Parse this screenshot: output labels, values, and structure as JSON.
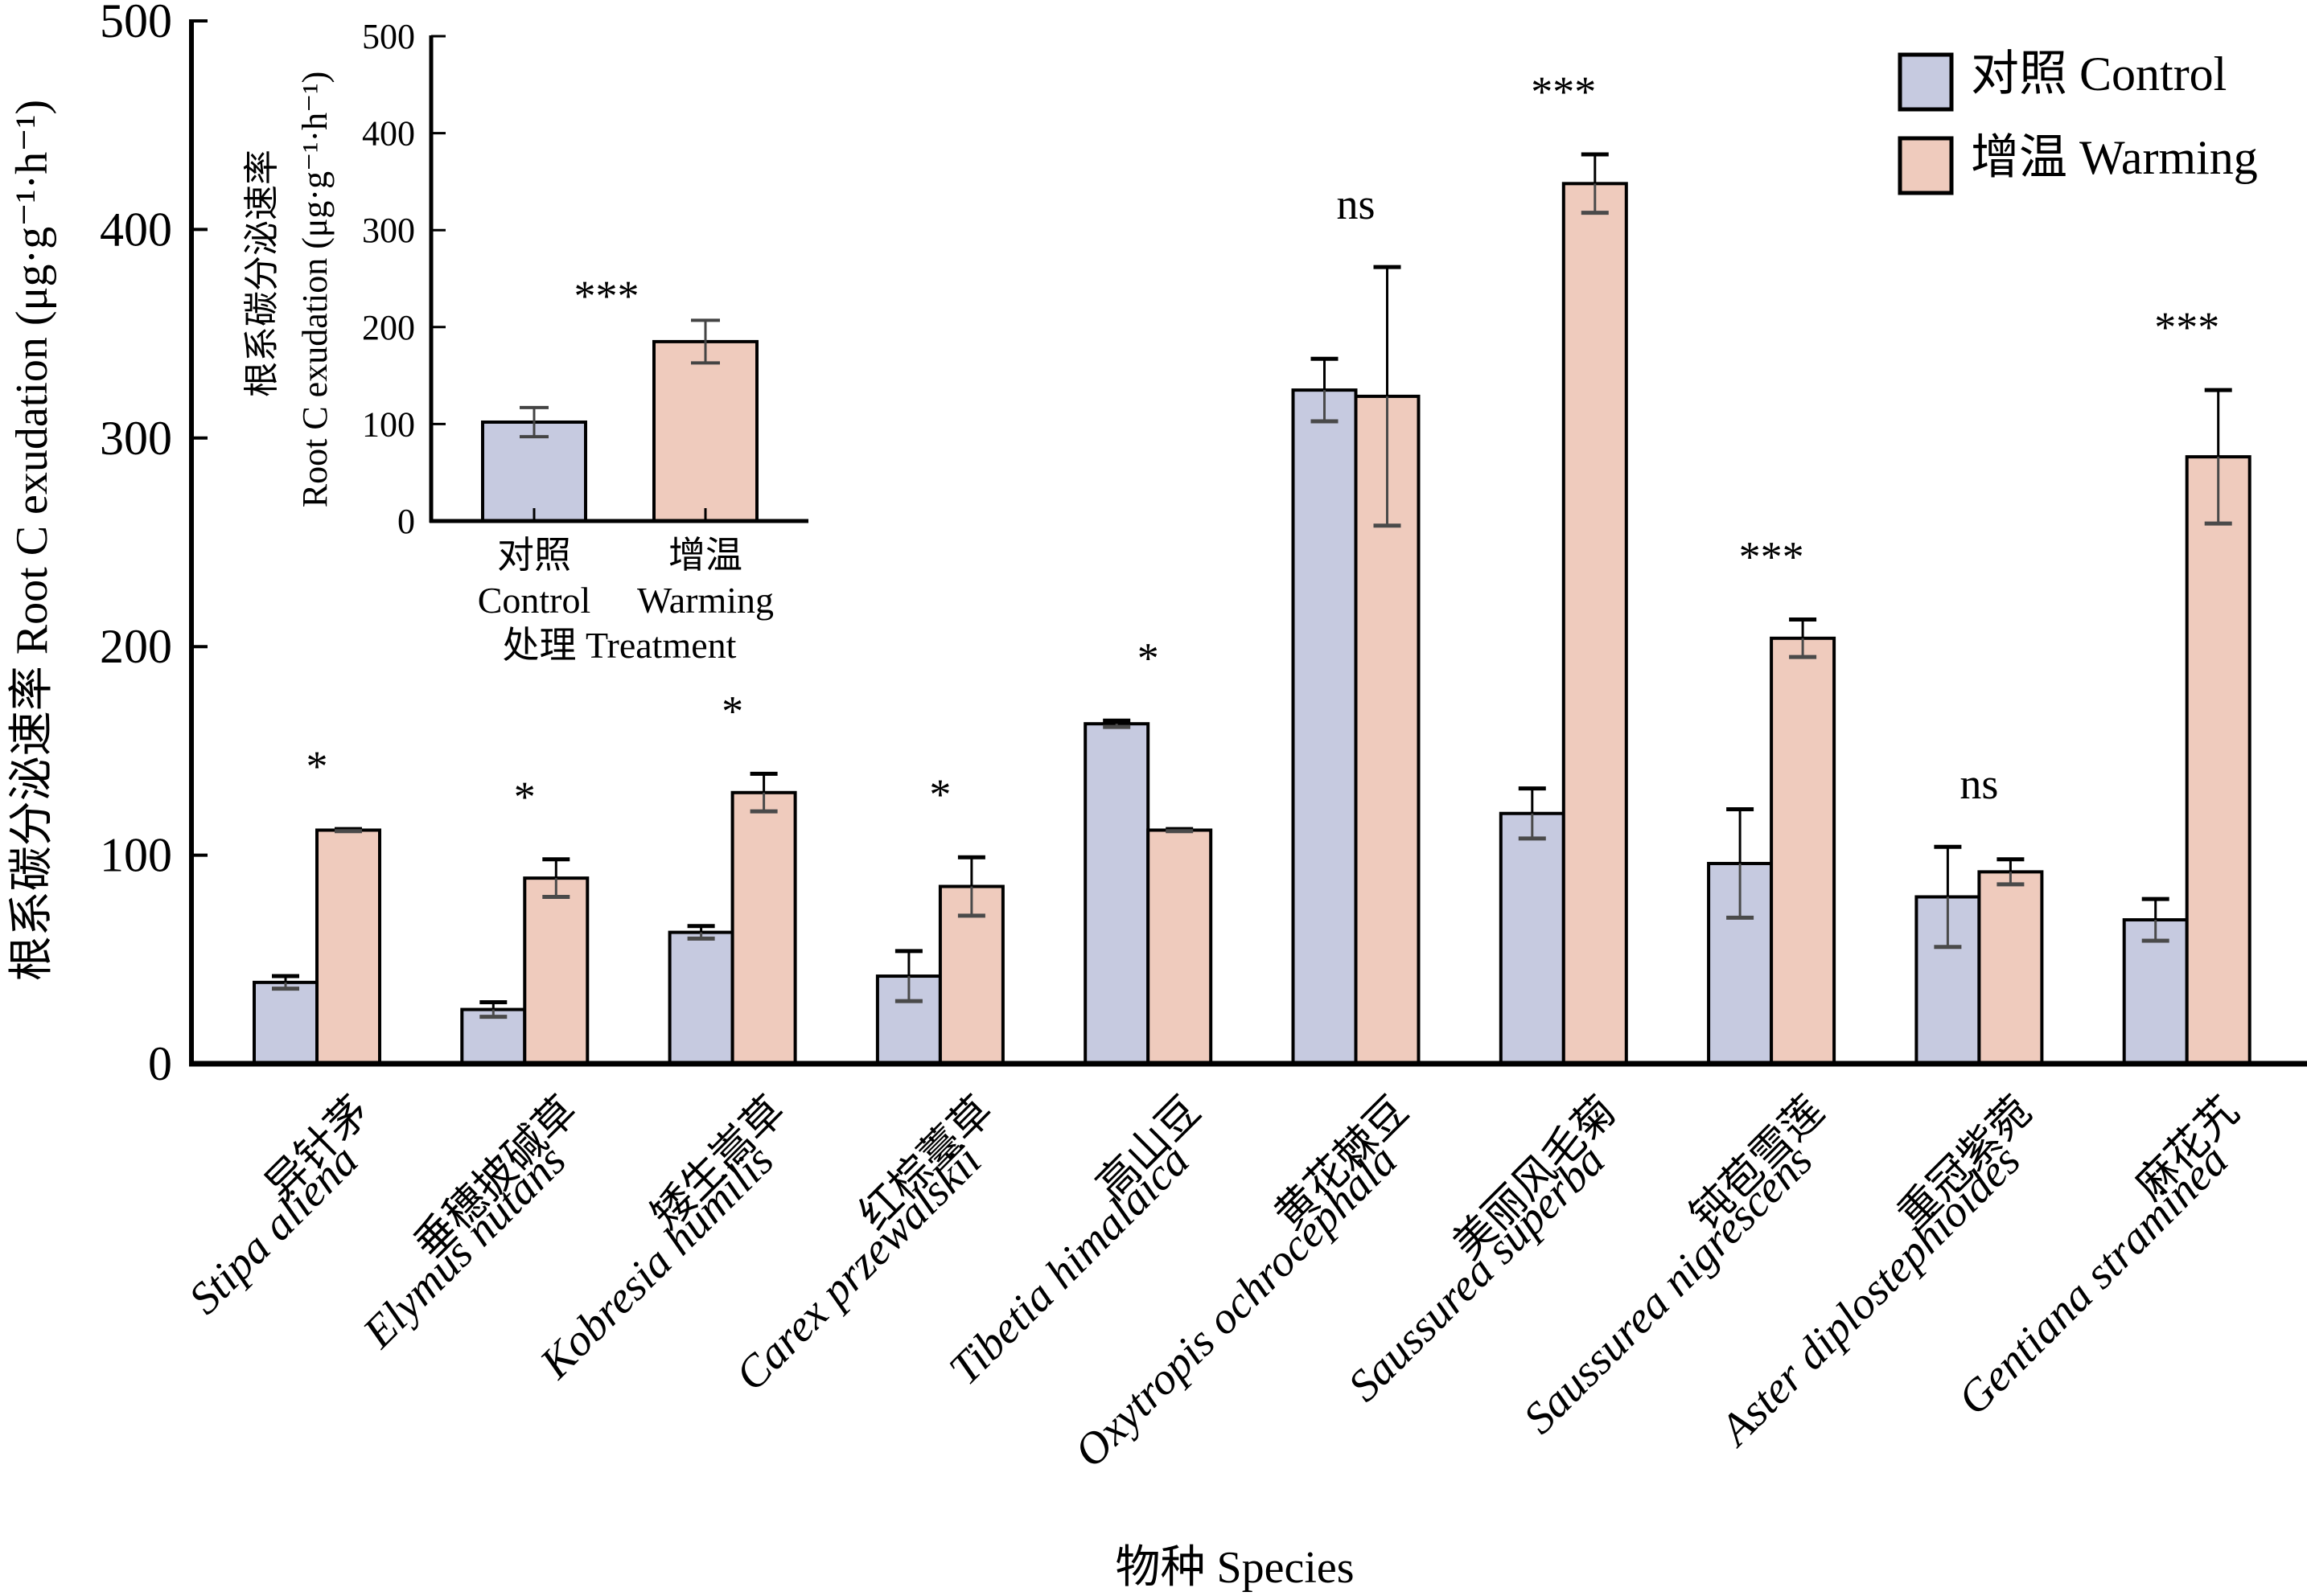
{
  "chart_data": {
    "type": "bar",
    "xlabel": "物种 Species",
    "ylabel": "根系碳分泌速率 Root C exudation (μg·g⁻¹·h⁻¹)",
    "ylim": [
      0,
      500
    ],
    "yticks": [
      "0",
      "100",
      "200",
      "300",
      "400",
      "500"
    ],
    "grid": false,
    "legend_position": "top-right",
    "categories": [
      {
        "cn": "异针茅",
        "sci": "Stipa aliena"
      },
      {
        "cn": "垂穗披碱草",
        "sci": "Elymus nutans"
      },
      {
        "cn": "矮生嵩草",
        "sci": "Kobresia humilis"
      },
      {
        "cn": "红棕薹草",
        "sci": "Carex przewalskii"
      },
      {
        "cn": "高山豆",
        "sci": "Tibetia himalaica"
      },
      {
        "cn": "黄花棘豆",
        "sci": "Oxytropis ochrocephala"
      },
      {
        "cn": "美丽风毛菊",
        "sci": "Saussurea superba"
      },
      {
        "cn": "钝苞雪莲",
        "sci": "Saussurea nigrescens"
      },
      {
        "cn": "重冠紫菀",
        "sci": "Aster diplostephioides"
      },
      {
        "cn": "麻花艽",
        "sci": "Gentiana straminea"
      }
    ],
    "series": [
      {
        "name": "对照 Control",
        "color": "#c6cae0",
        "values": [
          39,
          26,
          63,
          42,
          163,
          323,
          120,
          96,
          80,
          69
        ],
        "error": [
          3,
          3.5,
          3,
          12,
          1.5,
          15,
          12,
          26,
          24,
          10
        ]
      },
      {
        "name": "增温 Warming",
        "color": "#efcbbd",
        "values": [
          112,
          89,
          130,
          85,
          112,
          320,
          422,
          204,
          92,
          291
        ],
        "error": [
          0.5,
          9,
          9,
          14,
          0.5,
          62,
          14,
          9,
          6,
          32
        ]
      }
    ],
    "significance": [
      "*",
      "*",
      "*",
      "*",
      "*",
      "ns",
      "***",
      "***",
      "ns",
      "***"
    ],
    "inset": {
      "type": "bar",
      "ylabel_cn": "根系碳分泌速率",
      "ylabel_en": "Root C exudation (μg·g⁻¹·h⁻¹)",
      "xlabel": "处理 Treatment",
      "ylim": [
        0,
        500
      ],
      "yticks": [
        "0",
        "100",
        "200",
        "300",
        "400",
        "500"
      ],
      "categories": [
        {
          "cn": "对照",
          "en": "Control"
        },
        {
          "cn": "增温",
          "en": "Warming"
        }
      ],
      "values": [
        102,
        185
      ],
      "error": [
        15,
        22
      ],
      "significance": "***"
    }
  },
  "legend": {
    "items": [
      {
        "label": "对照 Control",
        "color": "#c6cae0"
      },
      {
        "label": "增温 Warming",
        "color": "#efcbbd"
      }
    ]
  }
}
